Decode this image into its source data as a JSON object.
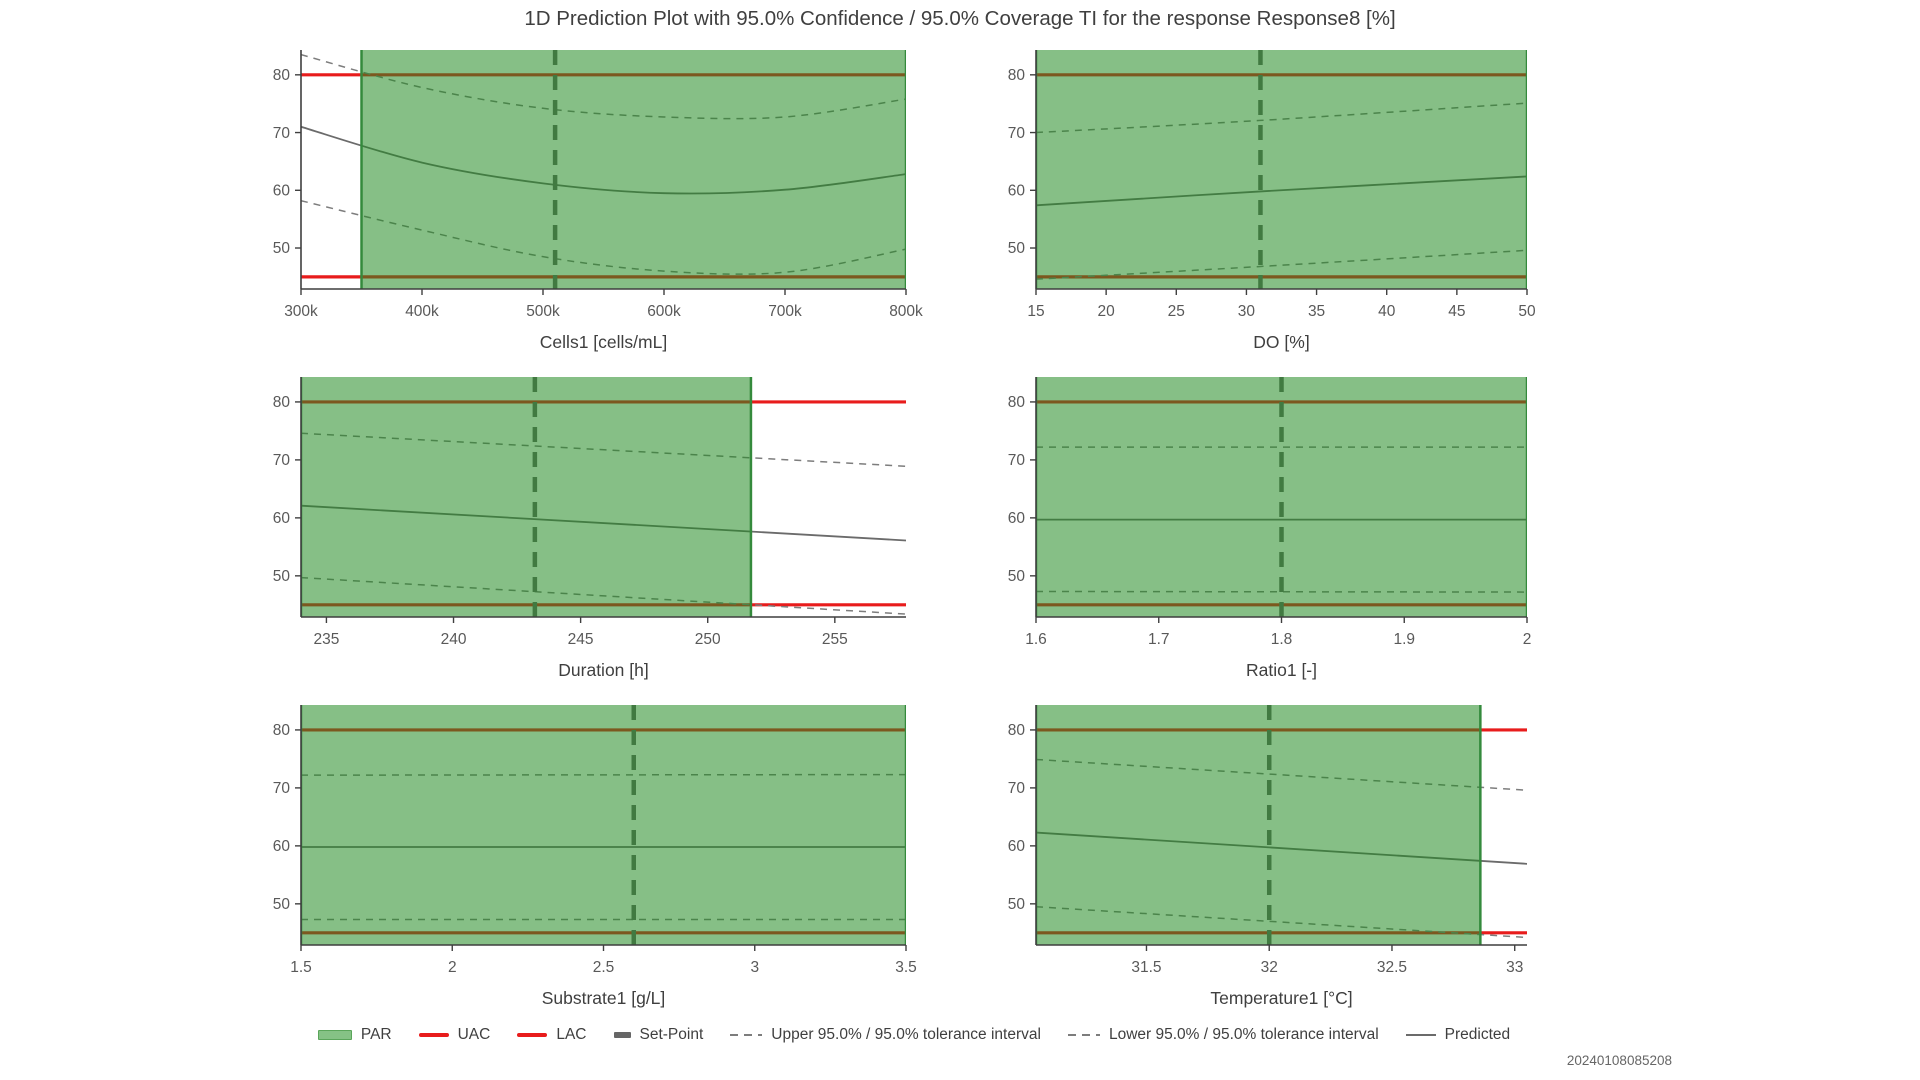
{
  "title": "1D Prediction Plot with 95.0% Confidence / 95.0% Coverage TI for the response Response8 [%]",
  "timestamp": "20240108085208",
  "colors": {
    "par_green_fill": "#228b22",
    "par_fill_opacity": 0.55,
    "par_edge_green": "#348a3c",
    "acceptance_red": "#e81c1c",
    "set_point_gray": "#666666",
    "tolerance_gray": "#7d7d7d",
    "predicted_gray": "#6b6b6b",
    "spine_gray": "#3f3f3f",
    "tick_label_gray": "#595959",
    "text_dark": "#3f3f3f",
    "legend_par_swatch": "#85c285"
  },
  "legend": {
    "items": [
      {
        "label": "PAR",
        "swatch": "green-patch"
      },
      {
        "label": "UAC",
        "swatch": "red-line"
      },
      {
        "label": "LAC",
        "swatch": "red-line"
      },
      {
        "label": "Set-Point",
        "swatch": "thick-gray-dash"
      },
      {
        "label": "Upper 95.0% / 95.0% tolerance interval",
        "swatch": "gray-dashed-line"
      },
      {
        "label": "Lower 95.0% / 95.0% tolerance interval",
        "swatch": "gray-dashed-line"
      },
      {
        "label": "Predicted",
        "swatch": "gray-solid-line"
      }
    ]
  },
  "chart_data": [
    {
      "name": "cells1",
      "type": "line",
      "xlabel": "Cells1 [cells/mL]",
      "xlim": [
        300000,
        800000
      ],
      "ylim": [
        42.9,
        84.3
      ],
      "xtick_values": [
        300000,
        400000,
        500000,
        600000,
        700000,
        800000
      ],
      "xtick_labels": [
        "300k",
        "400k",
        "500k",
        "600k",
        "700k",
        "800k"
      ],
      "ytick_values": [
        50,
        60,
        70,
        80
      ],
      "uac": 80,
      "lac": 45,
      "par_region": [
        350000,
        800000
      ],
      "set_point": 510000,
      "series": [
        {
          "name": "Predicted",
          "points": [
            [
              300000,
              71.0
            ],
            [
              400000,
              64.8
            ],
            [
              500000,
              61.2
            ],
            [
              600000,
              59.5
            ],
            [
              700000,
              60.1
            ],
            [
              800000,
              62.8
            ]
          ]
        },
        {
          "name": "Upper 95.0% / 95.0% tolerance interval",
          "points": [
            [
              300000,
              83.5
            ],
            [
              400000,
              77.8
            ],
            [
              500000,
              74.2
            ],
            [
              600000,
              72.7
            ],
            [
              700000,
              72.7
            ],
            [
              800000,
              75.8
            ]
          ]
        },
        {
          "name": "Lower 95.0% / 95.0% tolerance interval",
          "points": [
            [
              300000,
              58.2
            ],
            [
              400000,
              53.1
            ],
            [
              500000,
              48.5
            ],
            [
              600000,
              46.0
            ],
            [
              700000,
              45.8
            ],
            [
              800000,
              49.8
            ]
          ]
        }
      ]
    },
    {
      "name": "do",
      "type": "line",
      "xlabel": "DO [%]",
      "xlim": [
        15,
        50
      ],
      "ylim": [
        42.9,
        84.3
      ],
      "xtick_values": [
        15,
        20,
        25,
        30,
        35,
        40,
        45,
        50
      ],
      "xtick_labels": [
        "15",
        "20",
        "25",
        "30",
        "35",
        "40",
        "45",
        "50"
      ],
      "ytick_values": [
        50,
        60,
        70,
        80
      ],
      "uac": 80,
      "lac": 45,
      "par_region": [
        15,
        50
      ],
      "set_point": 31,
      "series": [
        {
          "name": "Predicted",
          "points": [
            [
              15,
              57.4
            ],
            [
              31,
              59.8
            ],
            [
              50,
              62.4
            ]
          ]
        },
        {
          "name": "Upper 95.0% / 95.0% tolerance interval",
          "points": [
            [
              15,
              70.0
            ],
            [
              31,
              72.1
            ],
            [
              50,
              75.1
            ]
          ]
        },
        {
          "name": "Lower 95.0% / 95.0% tolerance interval",
          "points": [
            [
              15,
              44.6
            ],
            [
              31,
              46.8
            ],
            [
              50,
              49.6
            ]
          ]
        }
      ]
    },
    {
      "name": "duration",
      "type": "line",
      "xlabel": "Duration [h]",
      "xlim": [
        234,
        257.8
      ],
      "ylim": [
        42.9,
        84.3
      ],
      "xtick_values": [
        235,
        240,
        245,
        250,
        255
      ],
      "xtick_labels": [
        "235",
        "240",
        "245",
        "250",
        "255"
      ],
      "ytick_values": [
        50,
        60,
        70,
        80
      ],
      "uac": 80,
      "lac": 45,
      "par_region": [
        234,
        251.7
      ],
      "set_point": 243.2,
      "series": [
        {
          "name": "Predicted",
          "points": [
            [
              234,
              62.1
            ],
            [
              257.8,
              56.1
            ]
          ]
        },
        {
          "name": "Upper 95.0% / 95.0% tolerance interval",
          "points": [
            [
              234,
              74.6
            ],
            [
              257.8,
              68.9
            ]
          ]
        },
        {
          "name": "Lower 95.0% / 95.0% tolerance interval",
          "points": [
            [
              234,
              49.7
            ],
            [
              257.8,
              43.4
            ]
          ]
        }
      ]
    },
    {
      "name": "ratio1",
      "type": "line",
      "xlabel": "Ratio1 [-]",
      "xlim": [
        1.6,
        2
      ],
      "ylim": [
        42.9,
        84.3
      ],
      "xtick_values": [
        1.6,
        1.7,
        1.8,
        1.9,
        2
      ],
      "xtick_labels": [
        "1.6",
        "1.7",
        "1.8",
        "1.9",
        "2"
      ],
      "ytick_values": [
        50,
        60,
        70,
        80
      ],
      "uac": 80,
      "lac": 45,
      "par_region": [
        1.6,
        2
      ],
      "set_point": 1.8,
      "series": [
        {
          "name": "Predicted",
          "points": [
            [
              1.6,
              59.7
            ],
            [
              2,
              59.7
            ]
          ]
        },
        {
          "name": "Upper 95.0% / 95.0% tolerance interval",
          "points": [
            [
              1.6,
              72.2
            ],
            [
              2,
              72.2
            ]
          ]
        },
        {
          "name": "Lower 95.0% / 95.0% tolerance interval",
          "points": [
            [
              1.6,
              47.3
            ],
            [
              2,
              47.2
            ]
          ]
        }
      ]
    },
    {
      "name": "substrate1",
      "type": "line",
      "xlabel": "Substrate1 [g/L]",
      "xlim": [
        1.5,
        3.5
      ],
      "ylim": [
        42.9,
        84.3
      ],
      "xtick_values": [
        1.5,
        2,
        2.5,
        3,
        3.5
      ],
      "xtick_labels": [
        "1.5",
        "2",
        "2.5",
        "3",
        "3.5"
      ],
      "ytick_values": [
        50,
        60,
        70,
        80
      ],
      "uac": 80,
      "lac": 45,
      "par_region": [
        1.5,
        3.5
      ],
      "set_point": 2.6,
      "series": [
        {
          "name": "Predicted",
          "points": [
            [
              1.5,
              59.8
            ],
            [
              3.5,
              59.8
            ]
          ]
        },
        {
          "name": "Upper 95.0% / 95.0% tolerance interval",
          "points": [
            [
              1.5,
              72.2
            ],
            [
              3.5,
              72.3
            ]
          ]
        },
        {
          "name": "Lower 95.0% / 95.0% tolerance interval",
          "points": [
            [
              1.5,
              47.3
            ],
            [
              3.5,
              47.3
            ]
          ]
        }
      ]
    },
    {
      "name": "temperature1",
      "type": "line",
      "xlabel": "Temperature1 [°C]",
      "xlim": [
        31.05,
        33.05
      ],
      "ylim": [
        42.9,
        84.3
      ],
      "xtick_values": [
        31.5,
        32,
        32.5,
        33
      ],
      "xtick_labels": [
        "31.5",
        "32",
        "32.5",
        "33"
      ],
      "ytick_values": [
        50,
        60,
        70,
        80
      ],
      "uac": 80,
      "lac": 45,
      "par_region": [
        31.05,
        32.86
      ],
      "set_point": 32,
      "series": [
        {
          "name": "Predicted",
          "points": [
            [
              31.05,
              62.3
            ],
            [
              33.05,
              56.9
            ]
          ]
        },
        {
          "name": "Upper 95.0% / 95.0% tolerance interval",
          "points": [
            [
              31.05,
              74.9
            ],
            [
              33.05,
              69.6
            ]
          ]
        },
        {
          "name": "Lower 95.0% / 95.0% tolerance interval",
          "points": [
            [
              31.05,
              49.5
            ],
            [
              33.05,
              44.2
            ]
          ]
        }
      ]
    }
  ]
}
